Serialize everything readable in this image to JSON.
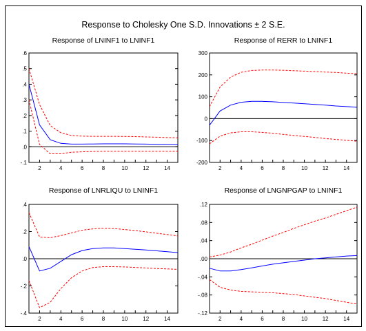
{
  "figure": {
    "title": "Response to Cholesky One S.D. Innovations ± 2 S.E."
  },
  "chart_data": [
    {
      "type": "line",
      "title": "Response of LNINF1 to LNINF1",
      "x": [
        1,
        2,
        3,
        4,
        5,
        6,
        7,
        8,
        9,
        10,
        11,
        12,
        13,
        14,
        15
      ],
      "xticks": [
        "2",
        "4",
        "6",
        "8",
        "10",
        "12",
        "14"
      ],
      "xlim": [
        1,
        15
      ],
      "ylim": [
        -0.1,
        0.6
      ],
      "yticks": [
        -0.1,
        0.0,
        0.1,
        0.2,
        0.3,
        0.4,
        0.5,
        0.6
      ],
      "ytick_labels": [
        "-.1",
        ".0",
        ".1",
        ".2",
        ".3",
        ".4",
        ".5",
        ".6"
      ],
      "zero_line": true,
      "series": [
        {
          "role": "response",
          "color": "#0000ff",
          "style": "solid",
          "values": [
            0.4,
            0.14,
            0.045,
            0.022,
            0.017,
            0.017,
            0.018,
            0.019,
            0.019,
            0.019,
            0.018,
            0.017,
            0.016,
            0.015,
            0.014
          ]
        },
        {
          "role": "upper",
          "color": "#ff0000",
          "style": "dashed",
          "values": [
            0.5,
            0.27,
            0.135,
            0.09,
            0.072,
            0.068,
            0.067,
            0.067,
            0.067,
            0.066,
            0.065,
            0.063,
            0.061,
            0.059,
            0.057
          ]
        },
        {
          "role": "lower",
          "color": "#ff0000",
          "style": "dashed",
          "values": [
            0.3,
            0.015,
            -0.045,
            -0.045,
            -0.035,
            -0.032,
            -0.03,
            -0.029,
            -0.029,
            -0.029,
            -0.029,
            -0.029,
            -0.029,
            -0.029,
            -0.029
          ]
        }
      ]
    },
    {
      "type": "line",
      "title": "Response of RERR to LNINF1",
      "x": [
        1,
        2,
        3,
        4,
        5,
        6,
        7,
        8,
        9,
        10,
        11,
        12,
        13,
        14,
        15
      ],
      "xticks": [
        "2",
        "4",
        "6",
        "8",
        "10",
        "12",
        "14"
      ],
      "xlim": [
        1,
        15
      ],
      "ylim": [
        -200,
        300
      ],
      "yticks": [
        -200,
        -100,
        0,
        100,
        200,
        300
      ],
      "ytick_labels": [
        "-200",
        "-100",
        "0",
        "100",
        "200",
        "300"
      ],
      "zero_line": true,
      "series": [
        {
          "role": "response",
          "color": "#0000ff",
          "style": "solid",
          "values": [
            -30,
            35,
            62,
            75,
            79,
            79,
            77,
            74,
            71,
            68,
            65,
            62,
            58,
            55,
            52
          ]
        },
        {
          "role": "upper",
          "color": "#ff0000",
          "style": "dashed",
          "values": [
            55,
            145,
            190,
            212,
            220,
            222,
            222,
            221,
            219,
            217,
            215,
            213,
            211,
            208,
            205
          ]
        },
        {
          "role": "lower",
          "color": "#ff0000",
          "style": "dashed",
          "values": [
            -115,
            -80,
            -65,
            -60,
            -60,
            -63,
            -67,
            -72,
            -77,
            -81,
            -86,
            -91,
            -95,
            -99,
            -103
          ]
        }
      ]
    },
    {
      "type": "line",
      "title": "Response of LNRLIQU to LNINF1",
      "x": [
        1,
        2,
        3,
        4,
        5,
        6,
        7,
        8,
        9,
        10,
        11,
        12,
        13,
        14,
        15
      ],
      "xticks": [
        "2",
        "4",
        "6",
        "8",
        "10",
        "12",
        "14"
      ],
      "xlim": [
        1,
        15
      ],
      "ylim": [
        -0.4,
        0.4
      ],
      "yticks": [
        -0.4,
        -0.2,
        0.0,
        0.2,
        0.4
      ],
      "ytick_labels": [
        "-.4",
        "-.2",
        ".0",
        ".2",
        ".4"
      ],
      "zero_line": true,
      "series": [
        {
          "role": "response",
          "color": "#0000ff",
          "style": "solid",
          "values": [
            0.09,
            -0.09,
            -0.07,
            -0.02,
            0.03,
            0.06,
            0.075,
            0.08,
            0.08,
            0.075,
            0.07,
            0.065,
            0.058,
            0.052,
            0.045
          ]
        },
        {
          "role": "upper",
          "color": "#ff0000",
          "style": "dashed",
          "values": [
            0.34,
            0.16,
            0.155,
            0.17,
            0.19,
            0.21,
            0.22,
            0.225,
            0.222,
            0.215,
            0.207,
            0.198,
            0.188,
            0.178,
            0.168
          ]
        },
        {
          "role": "lower",
          "color": "#ff0000",
          "style": "dashed",
          "values": [
            -0.16,
            -0.36,
            -0.32,
            -0.22,
            -0.14,
            -0.09,
            -0.065,
            -0.058,
            -0.058,
            -0.06,
            -0.064,
            -0.068,
            -0.072,
            -0.075,
            -0.078
          ]
        }
      ]
    },
    {
      "type": "line",
      "title": "Response of LNGNPGAP to LNINF1",
      "x": [
        1,
        2,
        3,
        4,
        5,
        6,
        7,
        8,
        9,
        10,
        11,
        12,
        13,
        14,
        15
      ],
      "xticks": [
        "2",
        "4",
        "6",
        "8",
        "10",
        "12",
        "14"
      ],
      "xlim": [
        1,
        15
      ],
      "ylim": [
        -0.12,
        0.12
      ],
      "yticks": [
        -0.12,
        -0.08,
        -0.04,
        0.0,
        0.04,
        0.08,
        0.12
      ],
      "ytick_labels": [
        "-.12",
        "-.08",
        "-.04",
        ".00",
        ".04",
        ".08",
        ".12"
      ],
      "zero_line": true,
      "series": [
        {
          "role": "response",
          "color": "#0000ff",
          "style": "solid",
          "values": [
            -0.021,
            -0.027,
            -0.027,
            -0.024,
            -0.02,
            -0.016,
            -0.012,
            -0.009,
            -0.006,
            -0.003,
            0.0,
            0.002,
            0.004,
            0.006,
            0.007
          ]
        },
        {
          "role": "upper",
          "color": "#ff0000",
          "style": "dashed",
          "values": [
            0.004,
            0.008,
            0.015,
            0.024,
            0.032,
            0.041,
            0.05,
            0.058,
            0.067,
            0.075,
            0.083,
            0.09,
            0.098,
            0.106,
            0.114
          ]
        },
        {
          "role": "lower",
          "color": "#ff0000",
          "style": "dashed",
          "values": [
            -0.046,
            -0.063,
            -0.069,
            -0.072,
            -0.073,
            -0.074,
            -0.075,
            -0.077,
            -0.079,
            -0.082,
            -0.085,
            -0.088,
            -0.092,
            -0.096,
            -0.1
          ]
        }
      ]
    }
  ]
}
